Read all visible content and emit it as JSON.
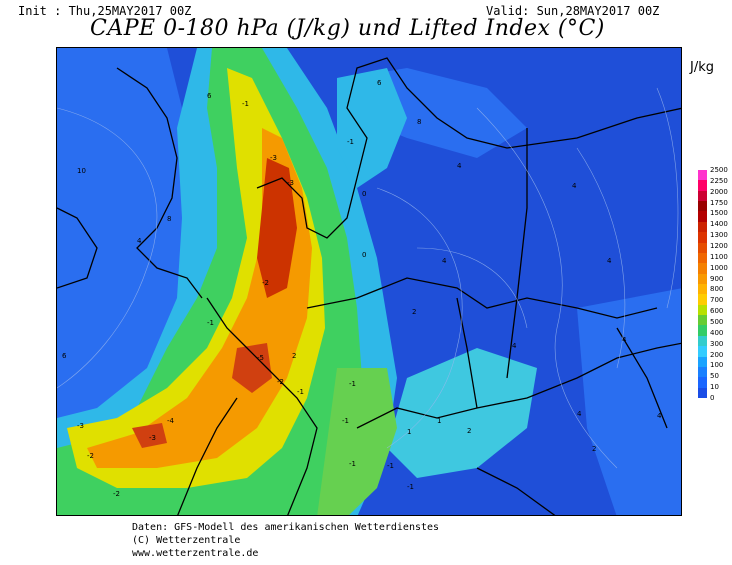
{
  "header": {
    "init": "Init : Thu,25MAY2017 00Z",
    "valid": "Valid: Sun,28MAY2017 00Z",
    "title": "CAPE 0-180 hPa (J/kg) und Lifted Index (°C)"
  },
  "legend": {
    "unit": "J/kg",
    "levels": [
      "2500",
      "2250",
      "2000",
      "1750",
      "1500",
      "1400",
      "1300",
      "1200",
      "1100",
      "1000",
      "900",
      "800",
      "700",
      "600",
      "500",
      "400",
      "300",
      "200",
      "100",
      "50",
      "10",
      "0"
    ],
    "colors": [
      "#ff33cc",
      "#ff0066",
      "#cc0033",
      "#990000",
      "#b30000",
      "#cc2200",
      "#dd3300",
      "#e64d00",
      "#f06600",
      "#f58000",
      "#f99900",
      "#ffb300",
      "#ffcc00",
      "#b8e000",
      "#66cc33",
      "#33cc66",
      "#33cccc",
      "#33ccff",
      "#1aa3ff",
      "#1a80ff",
      "#1a66ff",
      "#1a4de6"
    ]
  },
  "map": {
    "background_color": "#1f4fd8",
    "lifted_index_labels": [
      "10",
      "6",
      "8",
      "4",
      "6",
      "-1",
      "-3",
      "-5",
      "-3",
      "-2",
      "-1",
      "2",
      "-1",
      "-3",
      "-2",
      "-4",
      "-1",
      "-2",
      "-1",
      "-1",
      "-3",
      "-2",
      "-1",
      "0",
      "4",
      "4",
      "4",
      "4",
      "2",
      "4",
      "4",
      "2",
      "0",
      "4",
      "6",
      "8",
      "4",
      "-1",
      "1",
      "2",
      "-1",
      "1"
    ]
  },
  "credits": {
    "line1": "Daten: GFS-Modell des amerikanischen Wetterdienstes",
    "line2": "(C) Wetterzentrale",
    "line3": "www.wetterzentrale.de"
  }
}
